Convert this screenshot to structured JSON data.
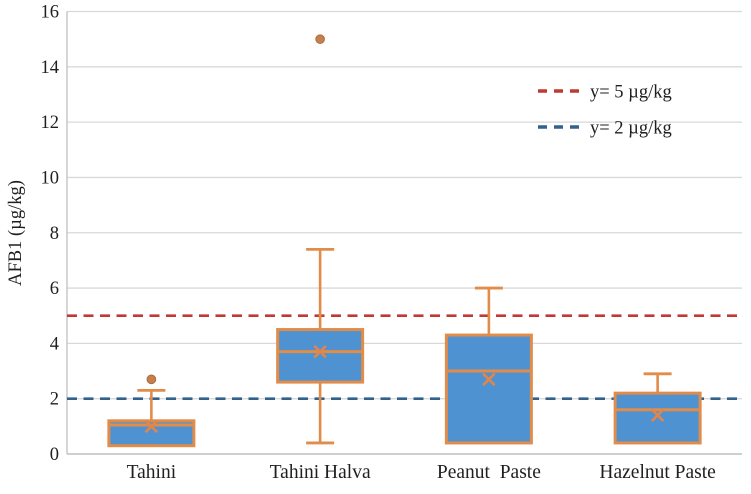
{
  "chart_data": {
    "type": "box",
    "title": "",
    "xlabel": "",
    "ylabel": "AFB1 (µg/kg)",
    "ylim": [
      0,
      16
    ],
    "ytick_step": 2,
    "grid": true,
    "legend_position": "inside-top-right",
    "categories": [
      "Tahini",
      "Tahini Halva",
      "Peanut  Paste",
      "Hazelnut Paste"
    ],
    "boxes": [
      {
        "label": "Tahini",
        "min": 0.3,
        "q1": 0.3,
        "median": 1.05,
        "q3": 1.2,
        "max": 2.3,
        "mean": 1.0,
        "outliers": [
          2.7
        ]
      },
      {
        "label": "Tahini Halva",
        "min": 0.4,
        "q1": 2.6,
        "median": 3.7,
        "q3": 4.5,
        "max": 7.4,
        "mean": 3.7,
        "outliers": [
          15.0
        ]
      },
      {
        "label": "Peanut  Paste",
        "min": 0.4,
        "q1": 0.4,
        "median": 3.0,
        "q3": 4.3,
        "max": 6.0,
        "mean": 2.7,
        "outliers": []
      },
      {
        "label": "Hazelnut Paste",
        "min": 0.4,
        "q1": 0.4,
        "median": 1.6,
        "q3": 2.2,
        "max": 2.9,
        "mean": 1.4,
        "outliers": []
      }
    ],
    "reference_lines": [
      {
        "y": 5,
        "label": "y= 5 µg/kg",
        "color": "#c03a33"
      },
      {
        "y": 2,
        "label": "y= 2 µg/kg",
        "color": "#33618e"
      }
    ],
    "colors": {
      "box_fill": "#4e92d1",
      "box_stroke": "#e28c4a",
      "mean_marker": "#e2854a",
      "outlier_fill": "#c5804c",
      "outlier_stroke": "#ab6d3e",
      "gridline": "#d9d9d9",
      "axis_line": "#bfbfbf",
      "text": "#1f1f1f"
    }
  }
}
